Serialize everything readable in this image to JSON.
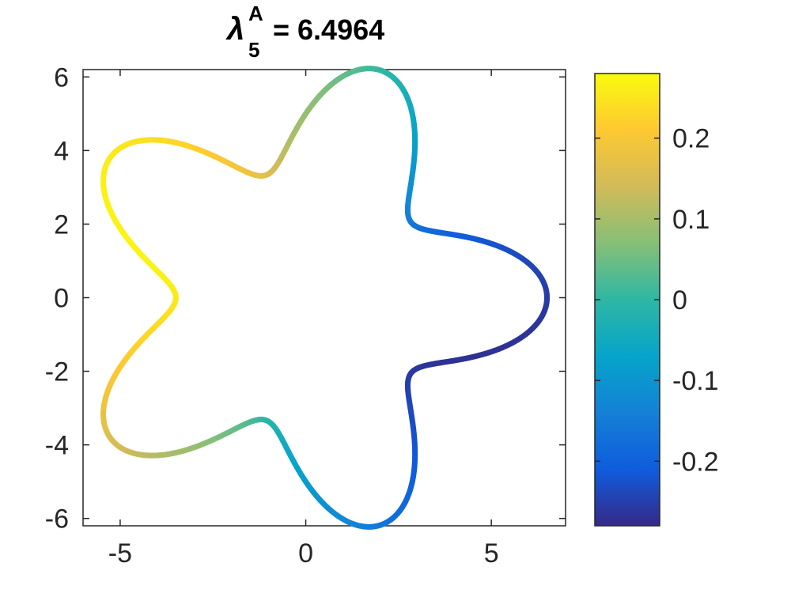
{
  "chart_data": {
    "type": "line",
    "title": {
      "symbol": "λ",
      "subscript": "5",
      "superscript": "A",
      "value_text": "= 6.4964"
    },
    "curve": {
      "form": "polar",
      "r_base": 5.0,
      "r_amplitude": 1.5,
      "lobes": 5,
      "phase": 0,
      "color_mode": "sin",
      "color_amplitude": 0.27,
      "color_phase_deg": -72
    },
    "xlim": [
      -6,
      7
    ],
    "ylim": [
      -6.2,
      6.2
    ],
    "xticks": [
      -5,
      0,
      5
    ],
    "xtick_labels": [
      "-5",
      "0",
      "5"
    ],
    "yticks": [
      -6,
      -4,
      -2,
      0,
      2,
      4,
      6
    ],
    "ytick_labels": [
      "-6",
      "-4",
      "-2",
      "0",
      "2",
      "4",
      "6"
    ],
    "grid": false,
    "colorbar": {
      "limits": [
        -0.28,
        0.28
      ],
      "ticks": [
        -0.2,
        -0.1,
        0,
        0.1,
        0.2
      ],
      "tick_labels": [
        "-0.2",
        "-0.1",
        "0",
        "0.1",
        "0.2"
      ],
      "colormap": "parula"
    }
  },
  "colormap_stops": [
    "#352a87",
    "#0f5cdd",
    "#1481d6",
    "#06a4ca",
    "#2eb7a4",
    "#87bf77",
    "#d1bb59",
    "#fec832",
    "#f9fb0e"
  ]
}
